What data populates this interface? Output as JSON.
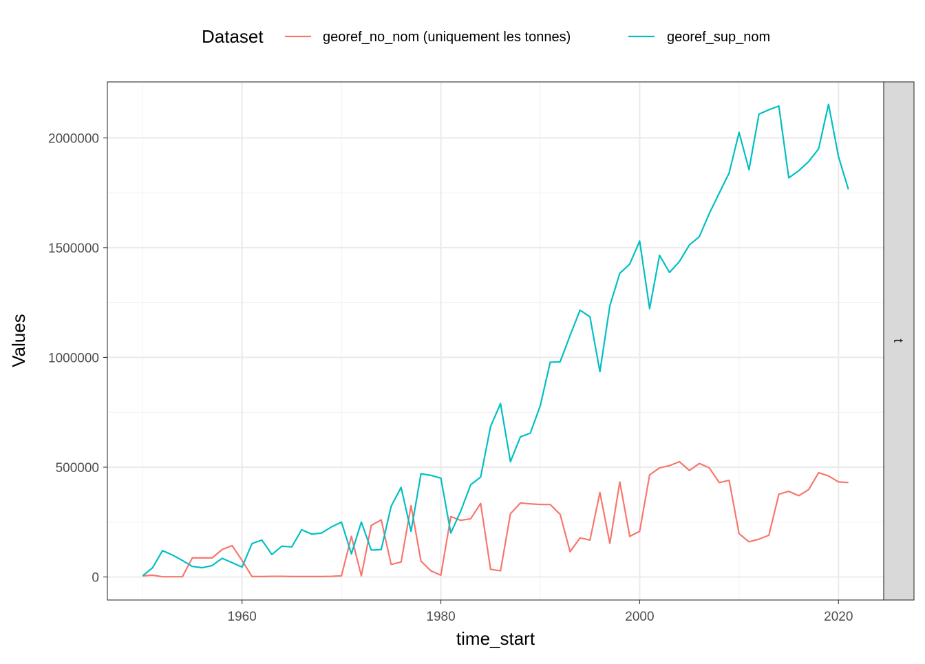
{
  "legend": {
    "title": "Dataset"
  },
  "strip": {
    "label": "t"
  },
  "colors": {
    "georef_no_nom": "#F8766D",
    "georef_sup_nom": "#00BFC4",
    "grid_major": "#EBEBEB",
    "grid_minor": "#F2F2F2",
    "panel_border": "#333333",
    "strip_fill": "#D9D9D9"
  },
  "chart_data": {
    "type": "line",
    "title": "",
    "xlabel": "time_start",
    "ylabel": "Values",
    "xlim": [
      1946.45,
      2024.55
    ],
    "ylim": [
      -105000,
      2255000
    ],
    "xticks": [
      1960,
      1980,
      2000,
      2020
    ],
    "yticks": [
      0,
      500000,
      1000000,
      1500000,
      2000000
    ],
    "ytick_labels": [
      "0",
      "500000",
      "1000000",
      "1500000",
      "2000000"
    ],
    "grid": true,
    "legend_position": "top",
    "facet_label": "t",
    "x": [
      1950,
      1951,
      1952,
      1953,
      1954,
      1955,
      1956,
      1957,
      1958,
      1959,
      1960,
      1961,
      1962,
      1963,
      1964,
      1965,
      1966,
      1967,
      1968,
      1969,
      1970,
      1971,
      1972,
      1973,
      1974,
      1975,
      1976,
      1977,
      1978,
      1979,
      1980,
      1981,
      1982,
      1983,
      1984,
      1985,
      1986,
      1987,
      1988,
      1989,
      1990,
      1991,
      1992,
      1993,
      1994,
      1995,
      1996,
      1997,
      1998,
      1999,
      2000,
      2001,
      2002,
      2003,
      2004,
      2005,
      2006,
      2007,
      2008,
      2009,
      2010,
      2011,
      2012,
      2013,
      2014,
      2015,
      2016,
      2017,
      2018,
      2019,
      2020,
      2021
    ],
    "series": [
      {
        "name": "georef_no_nom (uniquement les tonnes)",
        "color": "#F8766D",
        "values": [
          5000,
          8000,
          1000,
          1000,
          1000,
          87000,
          87000,
          87000,
          125000,
          143000,
          75000,
          2000,
          2000,
          3000,
          3000,
          2000,
          2000,
          2000,
          2000,
          3000,
          5000,
          185000,
          5000,
          235000,
          260000,
          57000,
          68000,
          325000,
          72000,
          28000,
          8000,
          275000,
          258000,
          265000,
          335000,
          35000,
          28000,
          288000,
          337000,
          333000,
          330000,
          330000,
          285000,
          115000,
          178000,
          168000,
          385000,
          153000,
          433000,
          185000,
          208000,
          465000,
          497000,
          507000,
          525000,
          485000,
          517000,
          497000,
          430000,
          440000,
          197000,
          160000,
          172000,
          190000,
          377000,
          390000,
          370000,
          398000,
          475000,
          460000,
          433000,
          430000
        ]
      },
      {
        "name": "georef_sup_nom",
        "color": "#00BFC4",
        "values": [
          5000,
          42000,
          120000,
          100000,
          75000,
          48000,
          42000,
          52000,
          85000,
          65000,
          45000,
          152000,
          168000,
          102000,
          140000,
          137000,
          215000,
          195000,
          200000,
          228000,
          250000,
          105000,
          250000,
          122000,
          125000,
          322000,
          408000,
          208000,
          470000,
          463000,
          450000,
          200000,
          300000,
          420000,
          455000,
          685000,
          790000,
          525000,
          638000,
          655000,
          780000,
          978000,
          980000,
          1100000,
          1215000,
          1185000,
          935000,
          1235000,
          1383000,
          1425000,
          1530000,
          1222000,
          1465000,
          1387000,
          1437000,
          1512000,
          1550000,
          1655000,
          1748000,
          1840000,
          2025000,
          1855000,
          2108000,
          2128000,
          2145000,
          1818000,
          1850000,
          1892000,
          1950000,
          2153000,
          1915000,
          1765000
        ]
      }
    ]
  }
}
